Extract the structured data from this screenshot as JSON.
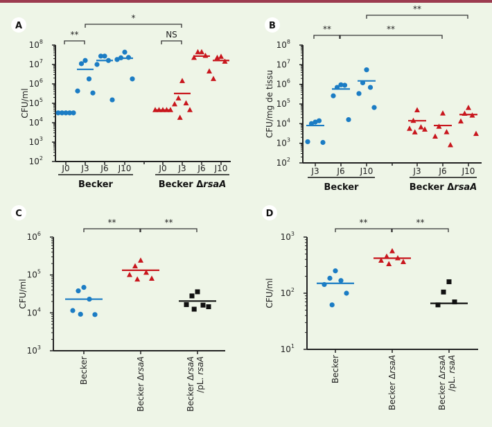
{
  "colors": {
    "becker": "#1b7cc4",
    "mutant": "#c8161d",
    "complemented": "#111111",
    "axis": "#222222",
    "bracket": "#333333"
  },
  "chart_data": [
    {
      "panel": "A",
      "type": "scatter",
      "ylabel": "CFU/ml",
      "yscale": "log",
      "ylim": [
        100,
        100000000
      ],
      "yticks": [
        [
          "10",
          "2"
        ],
        [
          "10",
          "3"
        ],
        [
          "10",
          "4"
        ],
        [
          "10",
          "5"
        ],
        [
          "10",
          "6"
        ],
        [
          "10",
          "7"
        ],
        [
          "10",
          "8"
        ]
      ],
      "categories": [
        "J0",
        "J3",
        "J6",
        "J10",
        "J0",
        "J3",
        "J6",
        "J10"
      ],
      "groups": [
        {
          "label": "Becker",
          "italic": "",
          "cats": [
            0,
            1,
            2,
            3
          ]
        },
        {
          "label": "Becker Δ",
          "italic": "rsaA",
          "cats": [
            4,
            5,
            6,
            7
          ]
        }
      ],
      "series": [
        {
          "name": "Becker",
          "marker": "circle",
          "color_key": "becker",
          "points": [
            [
              0,
              32000
            ],
            [
              0,
              32000
            ],
            [
              0,
              32000
            ],
            [
              0,
              32000
            ],
            [
              0,
              32000
            ],
            [
              1,
              16000000
            ],
            [
              1,
              11000000
            ],
            [
              1,
              1800000
            ],
            [
              1,
              430000
            ],
            [
              1,
              340000
            ],
            [
              2,
              27000000
            ],
            [
              2,
              27000000
            ],
            [
              2,
              16000000
            ],
            [
              2,
              10000000
            ],
            [
              2,
              150000
            ],
            [
              3,
              43000000
            ],
            [
              3,
              22000000
            ],
            [
              3,
              23000000
            ],
            [
              3,
              18000000
            ],
            [
              3,
              1800000
            ]
          ],
          "medians": [
            [
              0,
              32000
            ],
            [
              1,
              5600000
            ],
            [
              2,
              16000000
            ],
            [
              3,
              21000000
            ]
          ]
        },
        {
          "name": "Becker ΔrsaA",
          "marker": "triangle",
          "color_key": "mutant",
          "points": [
            [
              4,
              45000
            ],
            [
              4,
              45000
            ],
            [
              4,
              45000
            ],
            [
              4,
              45000
            ],
            [
              4,
              45000
            ],
            [
              5,
              1400000
            ],
            [
              5,
              180000
            ],
            [
              5,
              100000
            ],
            [
              5,
              89000
            ],
            [
              5,
              45000
            ],
            [
              5,
              18000
            ],
            [
              6,
              43000000
            ],
            [
              6,
              43000000
            ],
            [
              6,
              28000000
            ],
            [
              6,
              22000000
            ],
            [
              6,
              4400000
            ],
            [
              7,
              25000000
            ],
            [
              7,
              22000000
            ],
            [
              7,
              14000000
            ],
            [
              7,
              1800000
            ]
          ],
          "medians": [
            [
              4,
              45000
            ],
            [
              5,
              320000
            ],
            [
              6,
              27000000
            ],
            [
              7,
              16000000
            ]
          ]
        }
      ],
      "significance": [
        {
          "from": 0,
          "to": 1,
          "label": "**",
          "level": 1
        },
        {
          "from": 1,
          "to": 5,
          "label": "*",
          "level": 2
        },
        {
          "from": 4,
          "to": 5,
          "label": "NS",
          "level": 1
        }
      ]
    },
    {
      "panel": "B",
      "type": "scatter",
      "ylabel": "CFU/mg de tissu",
      "yscale": "log",
      "ylim": [
        100,
        100000000
      ],
      "yticks": [
        [
          "10",
          "2"
        ],
        [
          "10",
          "3"
        ],
        [
          "10",
          "4"
        ],
        [
          "10",
          "5"
        ],
        [
          "10",
          "6"
        ],
        [
          "10",
          "7"
        ],
        [
          "10",
          "8"
        ]
      ],
      "categories": [
        "J3",
        "J6",
        "J10",
        "J3",
        "J6",
        "J10"
      ],
      "groups": [
        {
          "label": "Becker",
          "italic": "",
          "cats": [
            0,
            1,
            2
          ]
        },
        {
          "label": "Becker Δ",
          "italic": "rsaA",
          "cats": [
            3,
            4,
            5
          ]
        }
      ],
      "series": [
        {
          "name": "Becker",
          "marker": "circle",
          "color_key": "becker",
          "points": [
            [
              0,
              12000
            ],
            [
              0,
              10000
            ],
            [
              0,
              14000
            ],
            [
              0,
              1200
            ],
            [
              0,
              1100
            ],
            [
              1,
              950000
            ],
            [
              1,
              700000
            ],
            [
              1,
              900000
            ],
            [
              1,
              260000
            ],
            [
              1,
              16000
            ],
            [
              2,
              5500000
            ],
            [
              2,
              1200000
            ],
            [
              2,
              700000
            ],
            [
              2,
              340000
            ],
            [
              2,
              66000
            ]
          ],
          "medians": [
            [
              0,
              8000
            ],
            [
              1,
              580000
            ],
            [
              2,
              1500000
            ]
          ]
        },
        {
          "name": "Becker ΔrsaA",
          "marker": "triangle",
          "color_key": "mutant",
          "points": [
            [
              3,
              48000
            ],
            [
              3,
              14000
            ],
            [
              3,
              6500
            ],
            [
              3,
              5500
            ],
            [
              3,
              5000
            ],
            [
              3,
              3600
            ],
            [
              4,
              33000
            ],
            [
              4,
              7000
            ],
            [
              4,
              3700
            ],
            [
              4,
              2200
            ],
            [
              4,
              800
            ],
            [
              5,
              63000
            ],
            [
              5,
              32000
            ],
            [
              5,
              26000
            ],
            [
              5,
              13000
            ],
            [
              5,
              3000
            ]
          ],
          "medians": [
            [
              3,
              14000
            ],
            [
              4,
              8000
            ],
            [
              5,
              29000
            ]
          ]
        }
      ],
      "significance": [
        {
          "from": 0,
          "to": 1,
          "label": "**",
          "level": 1
        },
        {
          "from": 1,
          "to": 4,
          "label": "**",
          "level": 1
        },
        {
          "from": 2,
          "to": 5,
          "label": "**",
          "level": 2
        }
      ]
    },
    {
      "panel": "C",
      "type": "scatter",
      "ylabel": "CFU/ml",
      "yscale": "log",
      "ylim": [
        1000,
        1000000
      ],
      "yticks": [
        [
          "10",
          "3"
        ],
        [
          "10",
          "4"
        ],
        [
          "10",
          "5"
        ],
        [
          "10",
          "6"
        ]
      ],
      "categories": [
        {
          "line1": "Becker",
          "italic1": "",
          "line2": "",
          "italic2": ""
        },
        {
          "line1": "Becker Δ",
          "italic1": "rsaA",
          "line2": "",
          "italic2": ""
        },
        {
          "line1": "Becker Δ",
          "italic1": "rsaA",
          "line2": "/pL. ",
          "italic2": "rsaA"
        }
      ],
      "series": [
        {
          "name": "Becker",
          "marker": "circle",
          "color_key": "becker",
          "points": [
            [
              0,
              47000
            ],
            [
              0,
              38000
            ],
            [
              0,
              23000
            ],
            [
              0,
              11500
            ],
            [
              0,
              9000
            ],
            [
              0,
              9200
            ]
          ],
          "medians": [
            [
              0,
              23000
            ]
          ]
        },
        {
          "name": "Becker ΔrsaA",
          "marker": "triangle",
          "color_key": "mutant",
          "points": [
            [
              1,
              240000
            ],
            [
              1,
              170000
            ],
            [
              1,
              115000
            ],
            [
              1,
              100000
            ],
            [
              1,
              80000
            ],
            [
              1,
              76000
            ]
          ],
          "medians": [
            [
              1,
              133000
            ]
          ]
        },
        {
          "name": "Becker ΔrsaA /pL. rsaA",
          "marker": "square",
          "color_key": "complemented",
          "points": [
            [
              2,
              36000
            ],
            [
              2,
              28000
            ],
            [
              2,
              16000
            ],
            [
              2,
              16500
            ],
            [
              2,
              14500
            ],
            [
              2,
              12500
            ]
          ],
          "medians": [
            [
              2,
              20500
            ]
          ]
        }
      ],
      "significance": [
        {
          "from": 0,
          "to": 1,
          "label": "**",
          "level": 1
        },
        {
          "from": 1,
          "to": 2,
          "label": "**",
          "level": 1
        }
      ]
    },
    {
      "panel": "D",
      "type": "scatter",
      "ylabel": "CFU/ml",
      "yscale": "log",
      "ylim": [
        10,
        1000
      ],
      "yticks": [
        [
          "10",
          "1"
        ],
        [
          "10",
          "2"
        ],
        [
          "10",
          "3"
        ]
      ],
      "categories": [
        {
          "line1": "Becker",
          "italic1": "",
          "line2": "",
          "italic2": ""
        },
        {
          "line1": "Becker Δ",
          "italic1": "rsaA",
          "line2": "",
          "italic2": ""
        },
        {
          "line1": "Becker Δ",
          "italic1": "rsaA",
          "line2": "/pL. ",
          "italic2": "rsaA"
        }
      ],
      "series": [
        {
          "name": "Becker",
          "marker": "circle",
          "color_key": "becker",
          "points": [
            [
              0,
              250
            ],
            [
              0,
              185
            ],
            [
              0,
              168
            ],
            [
              0,
              143
            ],
            [
              0,
              100
            ],
            [
              0,
              62
            ]
          ],
          "medians": [
            [
              0,
              150
            ]
          ]
        },
        {
          "name": "Becker ΔrsaA",
          "marker": "triangle",
          "color_key": "mutant",
          "points": [
            [
              1,
              560
            ],
            [
              1,
              450
            ],
            [
              1,
              420
            ],
            [
              1,
              380
            ],
            [
              1,
              360
            ],
            [
              1,
              330
            ]
          ],
          "medians": [
            [
              1,
              420
            ]
          ]
        },
        {
          "name": "Becker ΔrsaA /pL. rsaA",
          "marker": "square",
          "color_key": "complemented",
          "points": [
            [
              2,
              160
            ],
            [
              2,
              105
            ],
            [
              2,
              70
            ],
            [
              2,
              62
            ]
          ],
          "medians": [
            [
              2,
              66
            ]
          ]
        }
      ],
      "significance": [
        {
          "from": 0,
          "to": 1,
          "label": "**",
          "level": 1
        },
        {
          "from": 1,
          "to": 2,
          "label": "**",
          "level": 1
        }
      ]
    }
  ]
}
